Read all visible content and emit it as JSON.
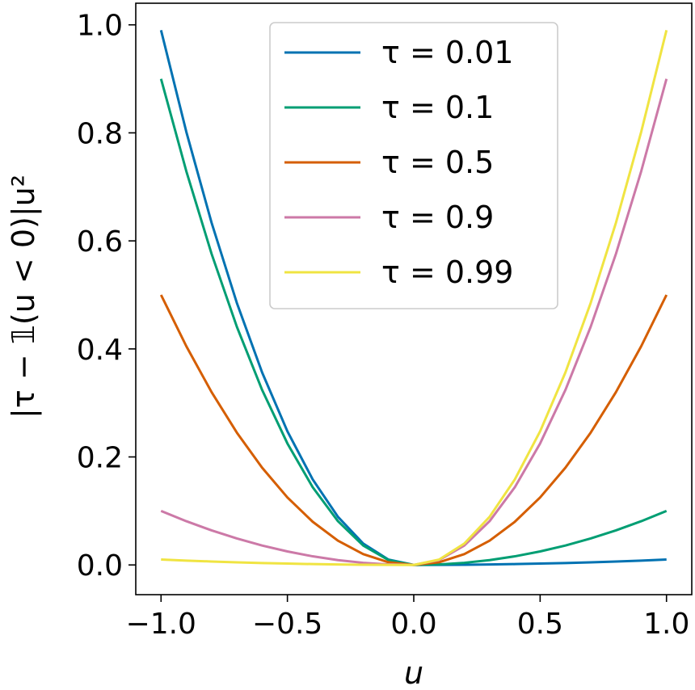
{
  "chart_data": {
    "type": "line",
    "title": "",
    "xlabel": "u",
    "ylabel": "|τ − 𝟙(u < 0)|u²",
    "xlim": [
      -1.1,
      1.1
    ],
    "ylim": [
      -0.055,
      1.04
    ],
    "xticks": [
      -1.0,
      -0.5,
      0.0,
      0.5,
      1.0
    ],
    "xtick_labels": [
      "−1.0",
      "−0.5",
      "0.0",
      "0.5",
      "1.0"
    ],
    "yticks": [
      0.0,
      0.2,
      0.4,
      0.6,
      0.8,
      1.0
    ],
    "ytick_labels": [
      "0.0",
      "0.2",
      "0.4",
      "0.6",
      "0.8",
      "1.0"
    ],
    "grid": false,
    "legend_position": "top-center",
    "x": [
      -1.0,
      -0.9,
      -0.8,
      -0.7,
      -0.6,
      -0.5,
      -0.4,
      -0.3,
      -0.2,
      -0.1,
      0.0,
      0.1,
      0.2,
      0.3,
      0.4,
      0.5,
      0.6,
      0.7,
      0.8,
      0.9,
      1.0
    ],
    "series": [
      {
        "name": "τ = 0.01",
        "tau": "0.01",
        "color": "#0072b2",
        "values": [
          0.99,
          0.8019,
          0.6336,
          0.4851,
          0.3564,
          0.2475,
          0.1584,
          0.0891,
          0.0396,
          0.0099,
          0.0,
          0.0001,
          0.0004,
          0.0009,
          0.0016,
          0.0025,
          0.0036,
          0.0049,
          0.0064,
          0.0081,
          0.01
        ]
      },
      {
        "name": "τ = 0.1",
        "tau": "0.1",
        "color": "#009e73",
        "values": [
          0.9,
          0.729,
          0.576,
          0.441,
          0.324,
          0.225,
          0.144,
          0.081,
          0.036,
          0.009,
          0.0,
          0.001,
          0.004,
          0.009,
          0.016,
          0.025,
          0.036,
          0.049,
          0.064,
          0.081,
          0.1
        ]
      },
      {
        "name": "τ = 0.5",
        "tau": "0.5",
        "color": "#d55e00",
        "values": [
          0.5,
          0.405,
          0.32,
          0.245,
          0.18,
          0.125,
          0.08,
          0.045,
          0.02,
          0.005,
          0.0,
          0.005,
          0.02,
          0.045,
          0.08,
          0.125,
          0.18,
          0.245,
          0.32,
          0.405,
          0.5
        ]
      },
      {
        "name": "τ = 0.9",
        "tau": "0.9",
        "color": "#cc79a7",
        "values": [
          0.1,
          0.081,
          0.064,
          0.049,
          0.036,
          0.025,
          0.016,
          0.009,
          0.004,
          0.001,
          0.0,
          0.009,
          0.036,
          0.081,
          0.144,
          0.225,
          0.324,
          0.441,
          0.576,
          0.729,
          0.9
        ]
      },
      {
        "name": "τ = 0.99",
        "tau": "0.99",
        "color": "#f0e442",
        "values": [
          0.01,
          0.0081,
          0.0064,
          0.0049,
          0.0036,
          0.0025,
          0.0016,
          0.0009,
          0.0004,
          0.0001,
          0.0,
          0.0099,
          0.0396,
          0.0891,
          0.1584,
          0.2475,
          0.3564,
          0.4851,
          0.6336,
          0.8019,
          0.99
        ]
      }
    ]
  }
}
